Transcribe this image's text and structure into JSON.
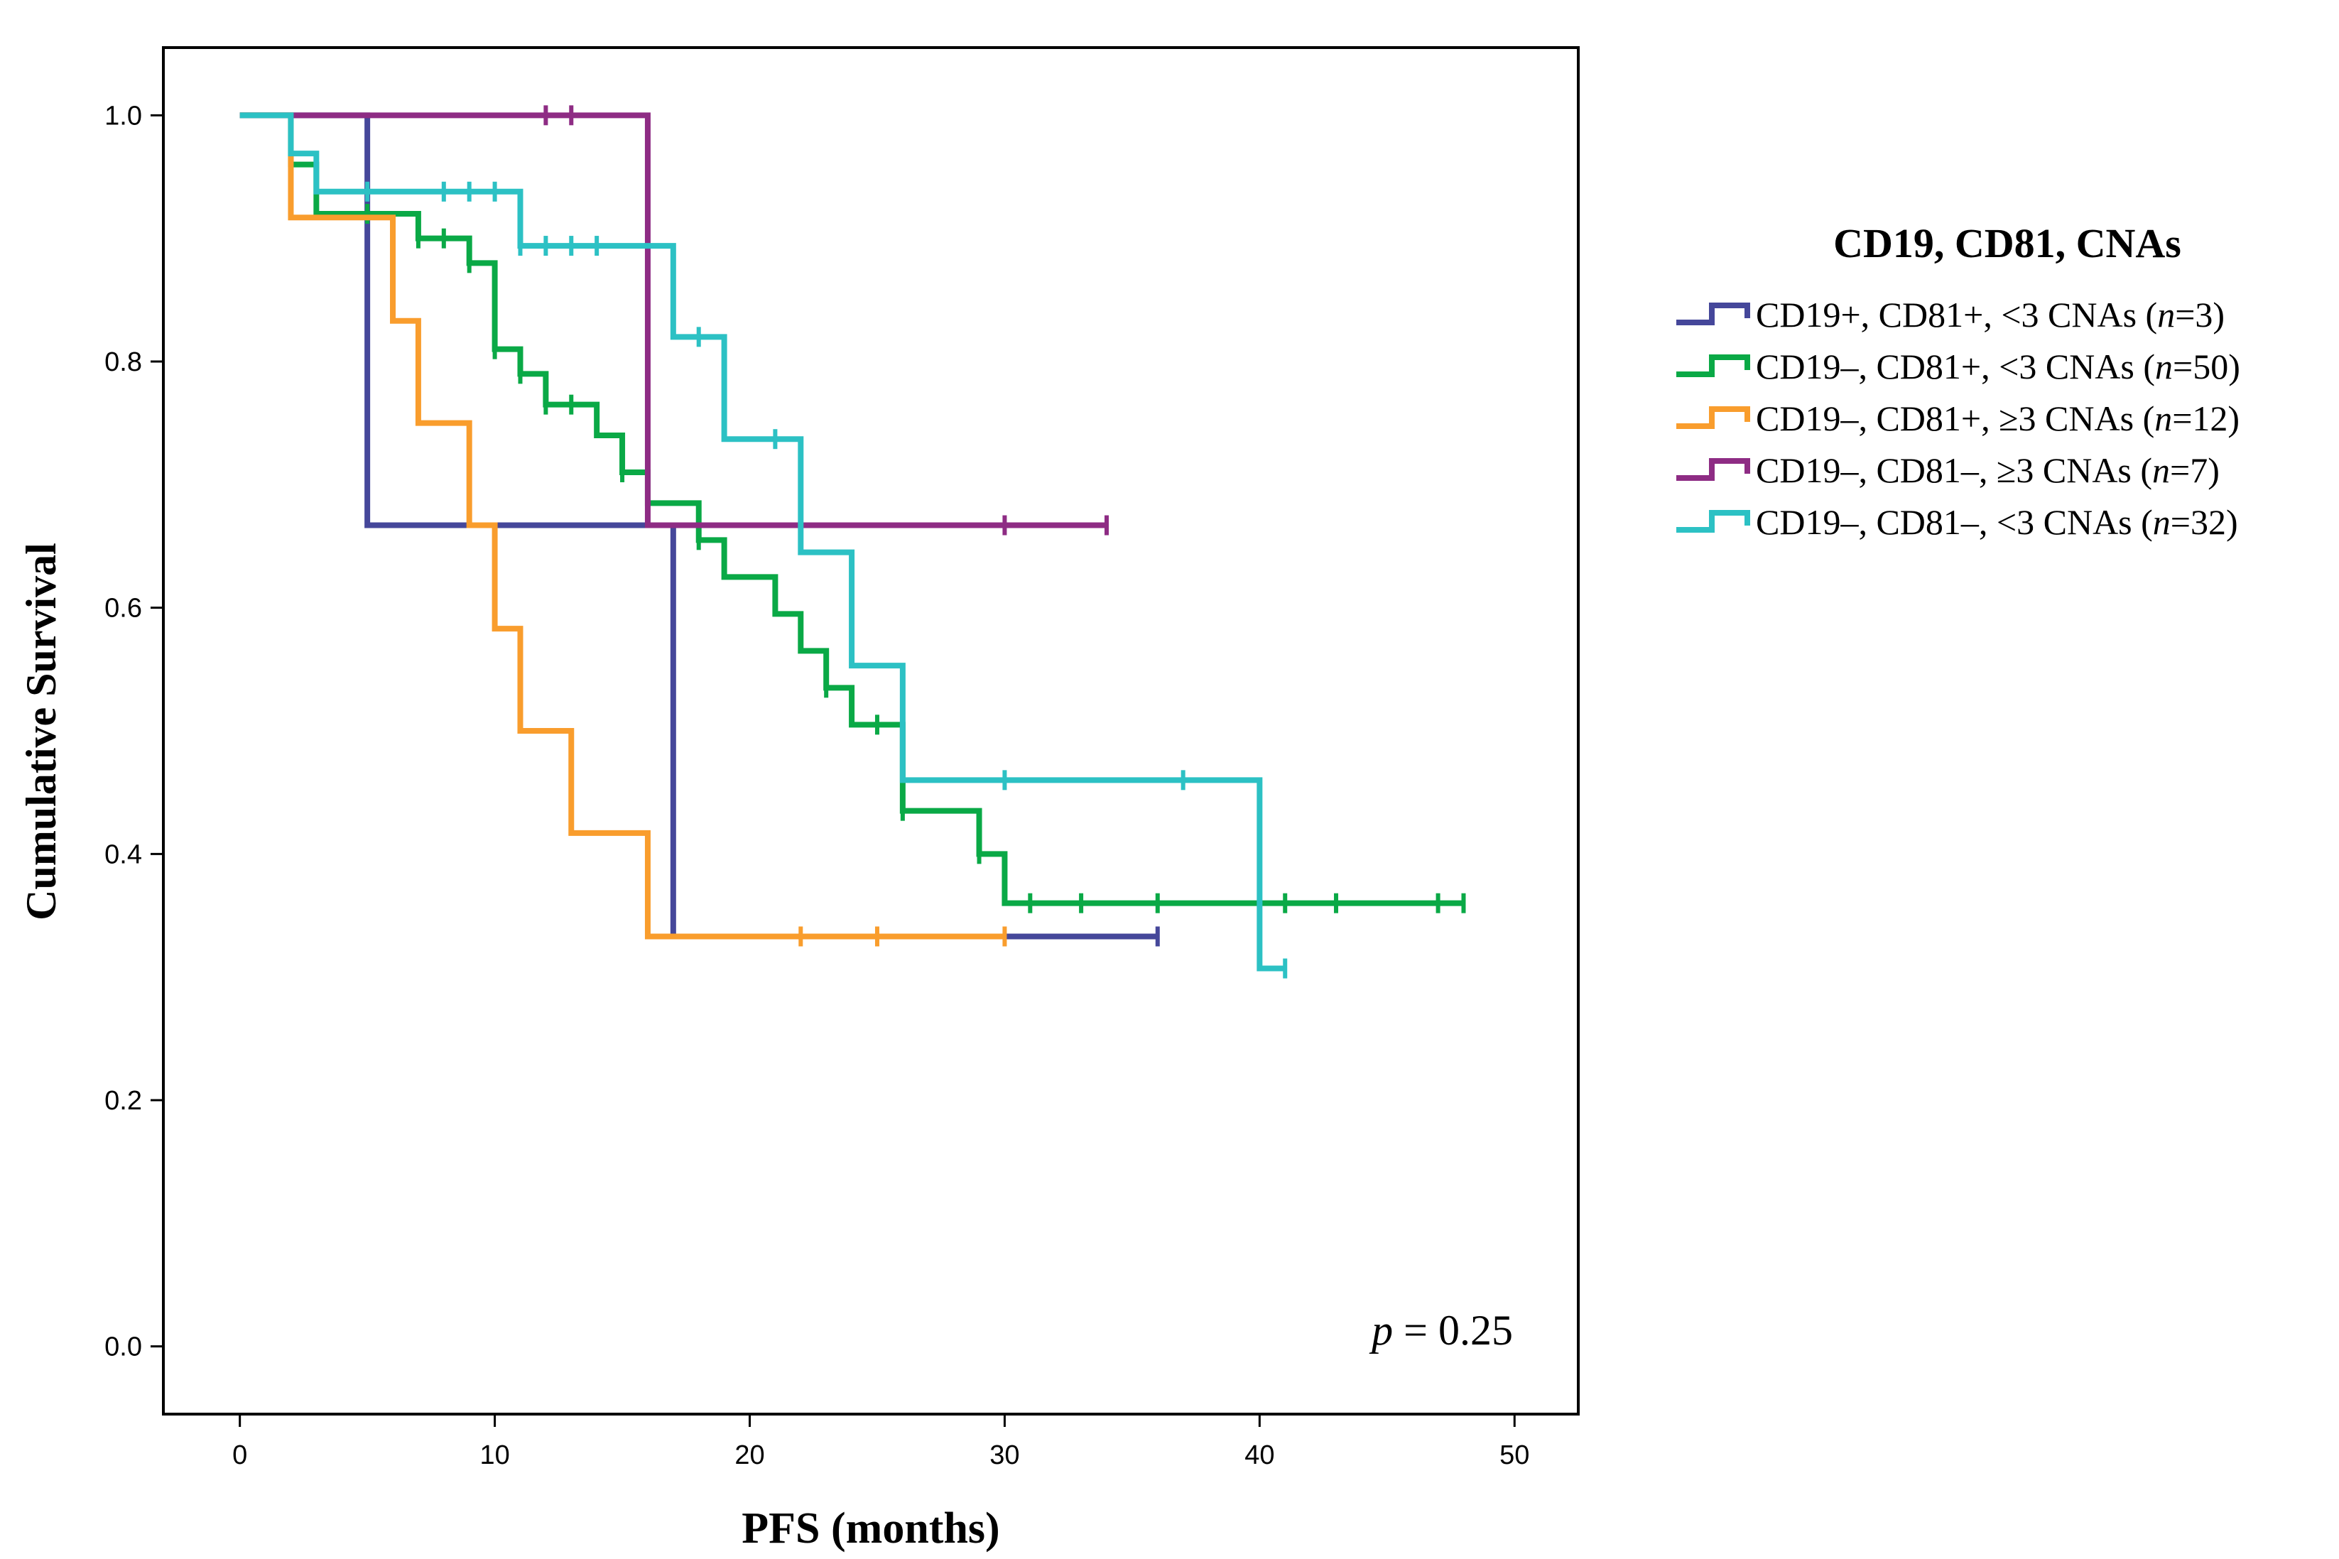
{
  "chart_data": {
    "type": "line",
    "subtype": "kaplan-meier",
    "xlabel": "PFS (months)",
    "ylabel": "Cumulative Survival",
    "xlim": [
      -3,
      52.5
    ],
    "ylim": [
      -0.055,
      1.055
    ],
    "x_ticks": [
      0,
      10,
      20,
      30,
      40,
      50
    ],
    "y_ticks": [
      0.0,
      0.2,
      0.4,
      0.6,
      0.8,
      1.0
    ],
    "x_tick_labels": [
      "0",
      "10",
      "20",
      "30",
      "40",
      "50"
    ],
    "y_tick_labels": [
      "0.0",
      "0.2",
      "0.4",
      "0.6",
      "0.8",
      "1.0"
    ],
    "legend_title": "CD19, CD81, CNAs",
    "legend_position": "right",
    "annotation": {
      "var": "p",
      "rest": " = 0.25"
    },
    "series": [
      {
        "name": "CD19+, CD81+, <3 CNAs (n=3)",
        "label_pre": "CD19+, CD81+, <3 CNAs (",
        "label_n": "n",
        "label_post": "=3)",
        "color": "#45479a",
        "steps": [
          [
            0,
            1.0
          ],
          [
            5,
            0.667
          ],
          [
            17,
            0.333
          ],
          [
            36,
            0.333
          ]
        ],
        "censors": [
          [
            36,
            0.333
          ]
        ]
      },
      {
        "name": "CD19–, CD81+, <3 CNAs (n=50)",
        "label_pre": "CD19–, CD81+, <3 CNAs (",
        "label_n": "n",
        "label_post": "=50)",
        "color": "#0aa946",
        "steps": [
          [
            0,
            1.0
          ],
          [
            2,
            0.96
          ],
          [
            3,
            0.92
          ],
          [
            7,
            0.9
          ],
          [
            9,
            0.88
          ],
          [
            10,
            0.81
          ],
          [
            11,
            0.79
          ],
          [
            12,
            0.765
          ],
          [
            14,
            0.74
          ],
          [
            15,
            0.71
          ],
          [
            16,
            0.685
          ],
          [
            18,
            0.655
          ],
          [
            19,
            0.625
          ],
          [
            21,
            0.595
          ],
          [
            22,
            0.565
          ],
          [
            23,
            0.535
          ],
          [
            24,
            0.505
          ],
          [
            26,
            0.435
          ],
          [
            29,
            0.4
          ],
          [
            30,
            0.36
          ],
          [
            48,
            0.36
          ]
        ],
        "censors": [
          [
            5,
            0.92
          ],
          [
            7,
            0.9
          ],
          [
            8,
            0.9
          ],
          [
            9,
            0.88
          ],
          [
            10,
            0.81
          ],
          [
            11,
            0.79
          ],
          [
            12,
            0.765
          ],
          [
            13,
            0.765
          ],
          [
            15,
            0.71
          ],
          [
            18,
            0.655
          ],
          [
            23,
            0.535
          ],
          [
            25,
            0.505
          ],
          [
            26,
            0.435
          ],
          [
            29,
            0.4
          ],
          [
            31,
            0.36
          ],
          [
            33,
            0.36
          ],
          [
            36,
            0.36
          ],
          [
            41,
            0.36
          ],
          [
            43,
            0.36
          ],
          [
            47,
            0.36
          ],
          [
            48,
            0.36
          ]
        ]
      },
      {
        "name": "CD19–, CD81+, ≥3 CNAs (n=12)",
        "label_pre": "CD19–, CD81+, ≥3 CNAs (",
        "label_n": "n",
        "label_post": "=12)",
        "color": "#f99d2d",
        "steps": [
          [
            0,
            1.0
          ],
          [
            2,
            0.917
          ],
          [
            6,
            0.833
          ],
          [
            7,
            0.75
          ],
          [
            9,
            0.667
          ],
          [
            10,
            0.583
          ],
          [
            11,
            0.5
          ],
          [
            13,
            0.417
          ],
          [
            16,
            0.333
          ],
          [
            30,
            0.333
          ]
        ],
        "censors": [
          [
            22,
            0.333
          ],
          [
            25,
            0.333
          ],
          [
            30,
            0.333
          ]
        ]
      },
      {
        "name": "CD19–, CD81–, ≥3 CNAs (n=7)",
        "label_pre": "CD19–, CD81–, ≥3 CNAs (",
        "label_n": "n",
        "label_post": "=7)",
        "color": "#8e2c84",
        "steps": [
          [
            0,
            1.0
          ],
          [
            16,
            0.667
          ],
          [
            34,
            0.667
          ]
        ],
        "censors": [
          [
            12,
            1.0
          ],
          [
            13,
            1.0
          ],
          [
            30,
            0.667
          ],
          [
            34,
            0.667
          ]
        ]
      },
      {
        "name": "CD19–, CD81–, <3 CNAs (n=32)",
        "label_pre": "CD19–, CD81–, <3 CNAs (",
        "label_n": "n",
        "label_post": "=32)",
        "color": "#2cc1c4",
        "steps": [
          [
            0,
            1.0
          ],
          [
            2,
            0.969
          ],
          [
            3,
            0.938
          ],
          [
            11,
            0.894
          ],
          [
            17,
            0.82
          ],
          [
            19,
            0.737
          ],
          [
            22,
            0.645
          ],
          [
            24,
            0.553
          ],
          [
            26,
            0.46
          ],
          [
            40,
            0.307
          ],
          [
            41,
            0.307
          ]
        ],
        "censors": [
          [
            5,
            0.938
          ],
          [
            8,
            0.938
          ],
          [
            9,
            0.938
          ],
          [
            10,
            0.938
          ],
          [
            11,
            0.894
          ],
          [
            12,
            0.894
          ],
          [
            13,
            0.894
          ],
          [
            14,
            0.894
          ],
          [
            18,
            0.82
          ],
          [
            21,
            0.737
          ],
          [
            30,
            0.46
          ],
          [
            37,
            0.46
          ],
          [
            41,
            0.307
          ]
        ]
      }
    ]
  }
}
